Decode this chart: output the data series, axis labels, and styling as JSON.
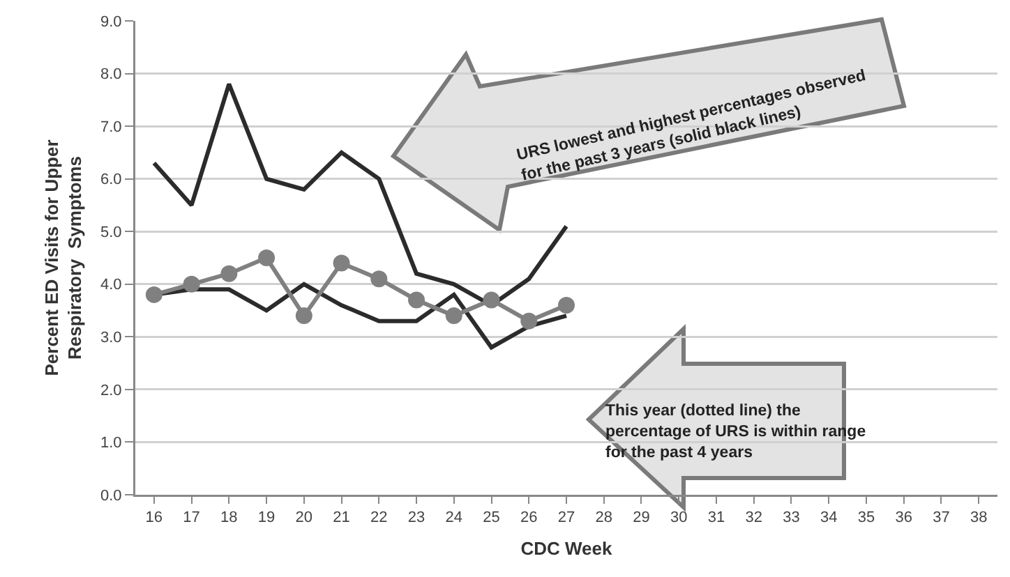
{
  "chart_data": {
    "type": "line",
    "xlabel": "CDC Week",
    "ylabel": "Percent ED Visits for Upper\nRespiratory  Symptoms",
    "categories": [
      "16",
      "17",
      "18",
      "19",
      "20",
      "21",
      "22",
      "23",
      "24",
      "25",
      "26",
      "27",
      "28",
      "29",
      "30",
      "31",
      "32",
      "33",
      "34",
      "35",
      "36",
      "37",
      "38"
    ],
    "series": [
      {
        "color": "#2b2b2b",
        "marker": "none",
        "values": [
          6.3,
          5.5,
          7.8,
          6.0,
          5.8,
          6.5,
          6.0,
          4.2,
          4.0,
          3.6,
          4.1,
          5.1,
          null,
          null,
          null,
          null,
          null,
          null,
          null,
          null,
          null,
          null,
          null
        ]
      },
      {
        "color": "#2b2b2b",
        "marker": "none",
        "values": [
          3.8,
          3.9,
          3.9,
          3.5,
          4.0,
          3.6,
          3.3,
          3.3,
          3.8,
          2.8,
          3.2,
          3.4,
          null,
          null,
          null,
          null,
          null,
          null,
          null,
          null,
          null,
          null,
          null
        ]
      },
      {
        "color": "#808080",
        "marker": "circle",
        "values": [
          3.8,
          4.0,
          4.2,
          4.5,
          3.4,
          4.4,
          4.1,
          3.7,
          3.4,
          3.7,
          3.3,
          3.6,
          null,
          null,
          null,
          null,
          null,
          null,
          null,
          null,
          null,
          null,
          null
        ]
      }
    ],
    "ylim": [
      0,
      9
    ],
    "yticks": [
      {
        "value": 0,
        "label": "0.0"
      },
      {
        "value": 1,
        "label": "1.0"
      },
      {
        "value": 2,
        "label": "2.0"
      },
      {
        "value": 3,
        "label": "3.0"
      },
      {
        "value": 4,
        "label": "4.0"
      },
      {
        "value": 5,
        "label": "5.0"
      },
      {
        "value": 6,
        "label": "6.0"
      },
      {
        "value": 7,
        "label": "7.0"
      },
      {
        "value": 8,
        "label": "8.0"
      },
      {
        "value": 9,
        "label": "9.0"
      }
    ],
    "grid": "y",
    "line_style": "solid",
    "annotations": [
      "URS lowest and highest percentages observed\nfor the past 3 years (solid black lines)",
      "This year (dotted line) the\npercentage of URS is within range\nfor the past 4 years"
    ]
  }
}
